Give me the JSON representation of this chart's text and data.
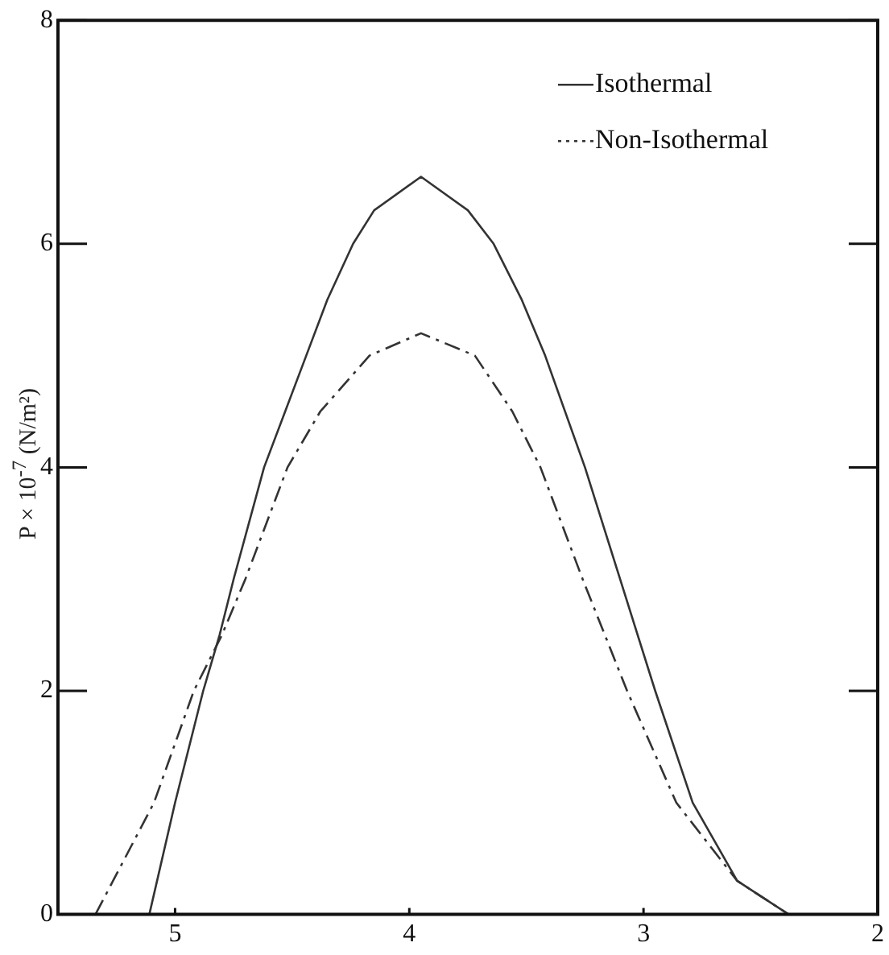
{
  "chart_data": {
    "type": "line",
    "ylabel": "P × 10$^{-7}$ (N/m²)",
    "xlim": [
      5.5,
      2
    ],
    "xticks": [
      5,
      4,
      3,
      2
    ],
    "ylim": [
      0,
      8
    ],
    "yticks": [
      0,
      2,
      4,
      6,
      8
    ],
    "legend": "top right",
    "grid": false,
    "marker": "none",
    "series": [
      {
        "name": "Isothermal",
        "color": "#333333",
        "line_style": "solid",
        "x": [
          5.11,
          5.0,
          4.88,
          4.81,
          4.75,
          4.62,
          4.44,
          4.35,
          4.24,
          4.15,
          3.95,
          3.75,
          3.64,
          3.52,
          3.42,
          3.25,
          3.1,
          2.95,
          2.79,
          2.6,
          2.38
        ],
        "values": [
          0,
          1,
          2,
          2.5,
          3,
          4,
          5,
          5.5,
          6,
          6.3,
          6.6,
          6.3,
          6,
          5.5,
          5,
          4,
          3,
          2,
          1,
          0.3,
          0
        ]
      },
      {
        "name": "Non-Isothermal",
        "color": "#333333",
        "line_style": "dashed",
        "x": [
          5.34,
          5.09,
          4.92,
          4.8,
          4.7,
          4.52,
          4.38,
          4.17,
          3.95,
          3.72,
          3.56,
          3.44,
          3.26,
          3.07,
          2.86,
          2.6,
          2.38
        ],
        "values": [
          0,
          1,
          2,
          2.5,
          3,
          4,
          4.5,
          5,
          5.2,
          5,
          4.5,
          4,
          3,
          2,
          1,
          0.3,
          0
        ]
      }
    ]
  }
}
